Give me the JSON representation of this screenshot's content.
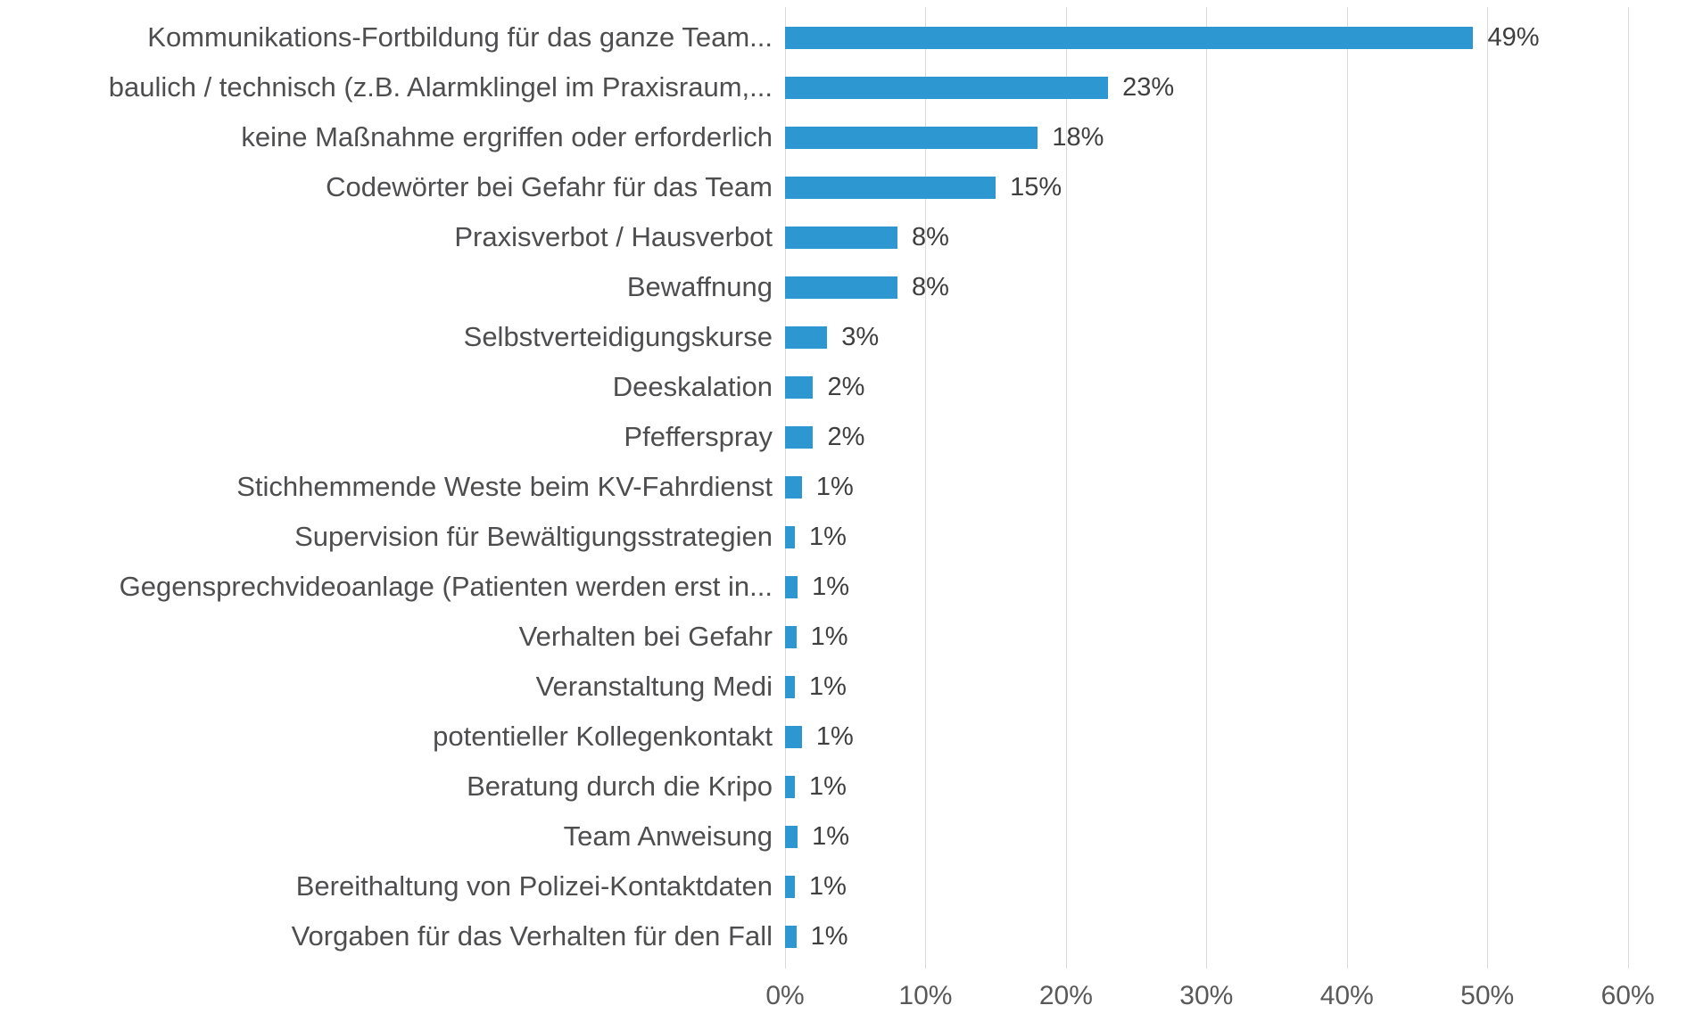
{
  "chart_data": {
    "type": "bar",
    "orientation": "horizontal",
    "title": "",
    "xlabel": "",
    "ylabel": "",
    "legend": "none",
    "grid": "vertical",
    "axis_max_pct": 62.5,
    "xlim": [
      0,
      60
    ],
    "xticks": [
      {
        "value": 0,
        "label": "0%"
      },
      {
        "value": 10,
        "label": "10%"
      },
      {
        "value": 20,
        "label": "20%"
      },
      {
        "value": 30,
        "label": "30%"
      },
      {
        "value": 40,
        "label": "40%"
      },
      {
        "value": 50,
        "label": "50%"
      },
      {
        "value": 60,
        "label": "60%"
      }
    ],
    "rows": [
      {
        "label": "Kommunikations-Fortbildung für das ganze Team...",
        "value": 49,
        "value_label": "49%",
        "display_pct": 49
      },
      {
        "label": "baulich / technisch (z.B. Alarmklingel im Praxisraum,...",
        "value": 23,
        "value_label": "23%",
        "display_pct": 23
      },
      {
        "label": "keine Maßnahme ergriffen oder erforderlich",
        "value": 18,
        "value_label": "18%",
        "display_pct": 18
      },
      {
        "label": "Codewörter bei Gefahr für das Team",
        "value": 15,
        "value_label": "15%",
        "display_pct": 15
      },
      {
        "label": "Praxisverbot / Hausverbot",
        "value": 8,
        "value_label": "8%",
        "display_pct": 8
      },
      {
        "label": "Bewaffnung",
        "value": 8,
        "value_label": "8%",
        "display_pct": 8
      },
      {
        "label": "Selbstverteidigungskurse",
        "value": 3,
        "value_label": "3%",
        "display_pct": 3
      },
      {
        "label": "Deeskalation",
        "value": 2,
        "value_label": "2%",
        "display_pct": 2
      },
      {
        "label": "Pfefferspray",
        "value": 2,
        "value_label": "2%",
        "display_pct": 2
      },
      {
        "label": "Stichhemmende Weste beim KV-Fahrdienst",
        "value": 1,
        "value_label": "1%",
        "display_pct": 1.2
      },
      {
        "label": "Supervision für Bewältigungsstrategien",
        "value": 1,
        "value_label": "1%",
        "display_pct": 0.7
      },
      {
        "label": "Gegensprechvideoanlage (Patienten werden erst in...",
        "value": 1,
        "value_label": "1%",
        "display_pct": 0.9
      },
      {
        "label": "Verhalten bei Gefahr",
        "value": 1,
        "value_label": "1%",
        "display_pct": 0.8
      },
      {
        "label": "Veranstaltung Medi",
        "value": 1,
        "value_label": "1%",
        "display_pct": 0.7
      },
      {
        "label": "potentieller Kollegenkontakt",
        "value": 1,
        "value_label": "1%",
        "display_pct": 1.2
      },
      {
        "label": "Beratung durch die Kripo",
        "value": 1,
        "value_label": "1%",
        "display_pct": 0.7
      },
      {
        "label": "Team Anweisung",
        "value": 1,
        "value_label": "1%",
        "display_pct": 0.9
      },
      {
        "label": "Bereithaltung von Polizei-Kontaktdaten",
        "value": 1,
        "value_label": "1%",
        "display_pct": 0.7
      },
      {
        "label": "Vorgaben für das Verhalten für den Fall",
        "value": 1,
        "value_label": "1%",
        "display_pct": 0.8
      }
    ],
    "colors": {
      "bar": "#2c97d1",
      "grid": "#d9d9d9",
      "category_label": "#4e4e50",
      "value_label": "#3f3f3f",
      "axis_label": "#595959",
      "background": "#ffffff"
    }
  }
}
